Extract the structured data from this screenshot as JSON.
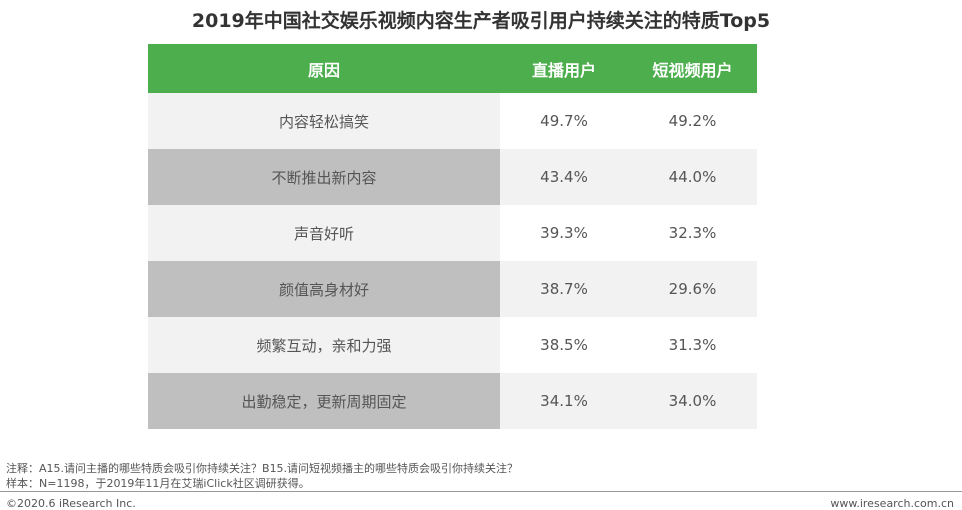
{
  "title": "2019年中国社交娱乐视频内容生产者吸引用户持续关注的特质Top5",
  "table": {
    "header": [
      "原因",
      "直播用户",
      "短视频用户"
    ],
    "rows": [
      [
        "内容轻松搞笑",
        "49.7%",
        "49.2%"
      ],
      [
        "不断推出新内容",
        "43.4%",
        "44.0%"
      ],
      [
        "声音好听",
        "39.3%",
        "32.3%"
      ],
      [
        "颜值高身材好",
        "38.7%",
        "29.6%"
      ],
      [
        "频繁互动，亲和力强",
        "38.5%",
        "31.3%"
      ],
      [
        "出勤稳定，更新周期固定",
        "34.1%",
        "34.0%"
      ]
    ]
  },
  "notes": [
    "注释：A15.请问主播的哪些特质会吸引你持续关注？B15.请问短视频播主的哪些特质会吸引你持续关注？",
    "样本：N=1198，于2019年11月在艾瑞iClick社区调研获得。"
  ],
  "footer": {
    "left": "©2020.6 iResearch Inc.",
    "right": "www.iresearch.com.cn"
  }
}
